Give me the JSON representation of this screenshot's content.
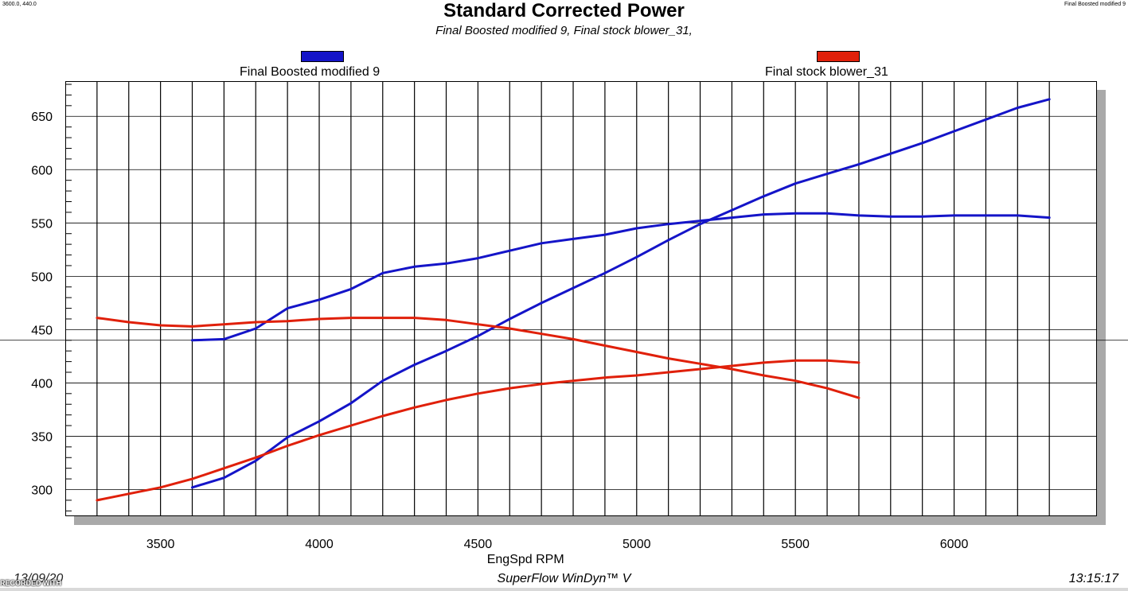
{
  "header": {
    "coord_readout": "3600.0, 440.0",
    "corner_label": "Final Boosted modified 9"
  },
  "footer": {
    "date": "13/09/20",
    "software": "SuperFlow WinDyn™ V",
    "time": "13:15:17",
    "recorded_with": "RECORDED WITH"
  },
  "chart_data": {
    "type": "line",
    "title": "Standard Corrected Power",
    "subtitle": "Final Boosted modified 9, Final stock blower_31,",
    "xlabel": "EngSpd  RPM",
    "ylabel": "",
    "xlim": [
      3200,
      6450
    ],
    "ylim": [
      275,
      683
    ],
    "x_ticks": [
      3500,
      4000,
      4500,
      5000,
      5500,
      6000
    ],
    "y_ticks": [
      300,
      350,
      400,
      450,
      500,
      550,
      600,
      650
    ],
    "x_gridlines": [
      3300,
      3400,
      3500,
      3600,
      3700,
      3800,
      3900,
      4000,
      4100,
      4200,
      4300,
      4400,
      4500,
      4600,
      4700,
      4800,
      4900,
      5000,
      5100,
      5200,
      5300,
      5400,
      5500,
      5600,
      5700,
      5800,
      5900,
      6000,
      6100,
      6200,
      6300
    ],
    "crosshair": {
      "x": 3600,
      "y": 440
    },
    "grid": true,
    "legend_placement": "top",
    "series": [
      {
        "name": "Final Boosted modified 9",
        "color": "#1414c8",
        "curves": [
          {
            "x": [
              3600,
              3700,
              3800,
              3900,
              4000,
              4100,
              4200,
              4300,
              4400,
              4500,
              4600,
              4700,
              4800,
              4900,
              5000,
              5100,
              5200,
              5300,
              5400,
              5500,
              5600,
              5700,
              5800,
              5900,
              6000,
              6100,
              6200,
              6300
            ],
            "y": [
              440,
              441,
              451,
              470,
              478,
              488,
              503,
              509,
              512,
              517,
              524,
              531,
              535,
              539,
              545,
              549,
              552,
              555,
              558,
              559,
              559,
              557,
              556,
              556,
              557,
              557,
              557,
              555
            ]
          },
          {
            "x": [
              3600,
              3700,
              3800,
              3900,
              4000,
              4100,
              4200,
              4300,
              4400,
              4500,
              4600,
              4700,
              4800,
              4900,
              5000,
              5100,
              5200,
              5300,
              5400,
              5500,
              5600,
              5700,
              5800,
              5900,
              6000,
              6100,
              6200,
              6300
            ],
            "y": [
              302,
              311,
              327,
              349,
              364,
              381,
              402,
              417,
              430,
              444,
              460,
              475,
              489,
              503,
              518,
              534,
              549,
              562,
              575,
              587,
              596,
              605,
              615,
              625,
              636,
              647,
              658,
              666
            ]
          }
        ]
      },
      {
        "name": "Final stock blower_31",
        "color": "#e0200a",
        "curves": [
          {
            "x": [
              3300,
              3400,
              3500,
              3600,
              3700,
              3800,
              3900,
              4000,
              4100,
              4200,
              4300,
              4400,
              4500,
              4600,
              4700,
              4800,
              4900,
              5000,
              5100,
              5200,
              5300,
              5400,
              5500,
              5600,
              5700
            ],
            "y": [
              461,
              457,
              454,
              453,
              455,
              457,
              458,
              460,
              461,
              461,
              461,
              459,
              455,
              451,
              446,
              441,
              435,
              429,
              423,
              418,
              413,
              407,
              402,
              395,
              386
            ]
          },
          {
            "x": [
              3300,
              3400,
              3500,
              3600,
              3700,
              3800,
              3900,
              4000,
              4100,
              4200,
              4300,
              4400,
              4500,
              4600,
              4700,
              4800,
              4900,
              5000,
              5100,
              5200,
              5300,
              5400,
              5500,
              5600,
              5700
            ],
            "y": [
              290,
              296,
              302,
              310,
              320,
              330,
              341,
              351,
              360,
              369,
              377,
              384,
              390,
              395,
              399,
              402,
              405,
              407,
              410,
              413,
              416,
              419,
              421,
              421,
              419
            ]
          }
        ]
      }
    ]
  }
}
